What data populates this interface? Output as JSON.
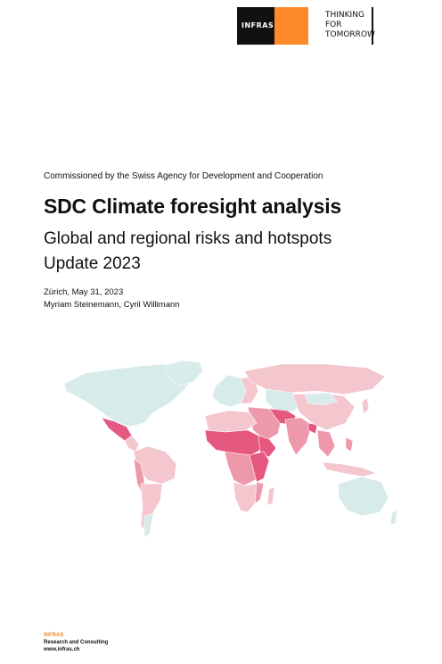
{
  "logo": {
    "wordmark": "INFRAS",
    "colors": {
      "black": "#111111",
      "orange": "#ff8a2a"
    }
  },
  "tagline": [
    "THINKING",
    "FOR",
    "TOMORROW"
  ],
  "commissioned": "Commissioned by the Swiss Agency for Development and Cooperation",
  "title": "SDC Climate foresight analysis",
  "subtitle": [
    "Global and regional risks and hotspots",
    "Update 2023"
  ],
  "meta": {
    "place_date": "Zürich, May 31, 2023",
    "authors": "Myriam Steinemann, Cyril Willimann"
  },
  "map_colors": {
    "low": "#d6ebea",
    "light": "#f4c6cd",
    "medium": "#ee98ab",
    "high": "#e5587f"
  },
  "footer": {
    "brand": "INFRAS",
    "line1": "Research and Consulting",
    "line2": "www.infras.ch"
  }
}
